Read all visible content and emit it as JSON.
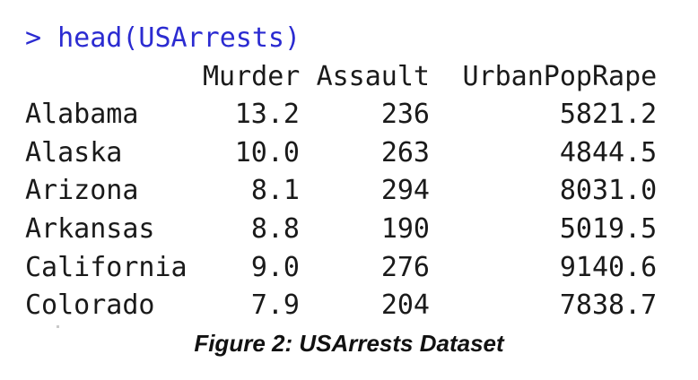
{
  "console": {
    "command": "> head(USArrests)",
    "columns": [
      "",
      "Murder",
      "Assault",
      "UrbanPop",
      "Rape"
    ],
    "rows": [
      {
        "name": "Alabama",
        "murder": "13.2",
        "assault": "236",
        "urbanpop": "58",
        "rape": "21.2"
      },
      {
        "name": "Alaska",
        "murder": "10.0",
        "assault": "263",
        "urbanpop": "48",
        "rape": "44.5"
      },
      {
        "name": "Arizona",
        "murder": "8.1",
        "assault": "294",
        "urbanpop": "80",
        "rape": "31.0"
      },
      {
        "name": "Arkansas",
        "murder": "8.8",
        "assault": "190",
        "urbanpop": "50",
        "rape": "19.5"
      },
      {
        "name": "California",
        "murder": "9.0",
        "assault": "276",
        "urbanpop": "91",
        "rape": "40.6"
      },
      {
        "name": "Colorado",
        "murder": "7.9",
        "assault": "204",
        "urbanpop": "78",
        "rape": "38.7"
      }
    ]
  },
  "caption": "Figure 2: USArrests Dataset",
  "colors": {
    "prompt": "#2b2bd1",
    "text": "#1a1a1a"
  }
}
